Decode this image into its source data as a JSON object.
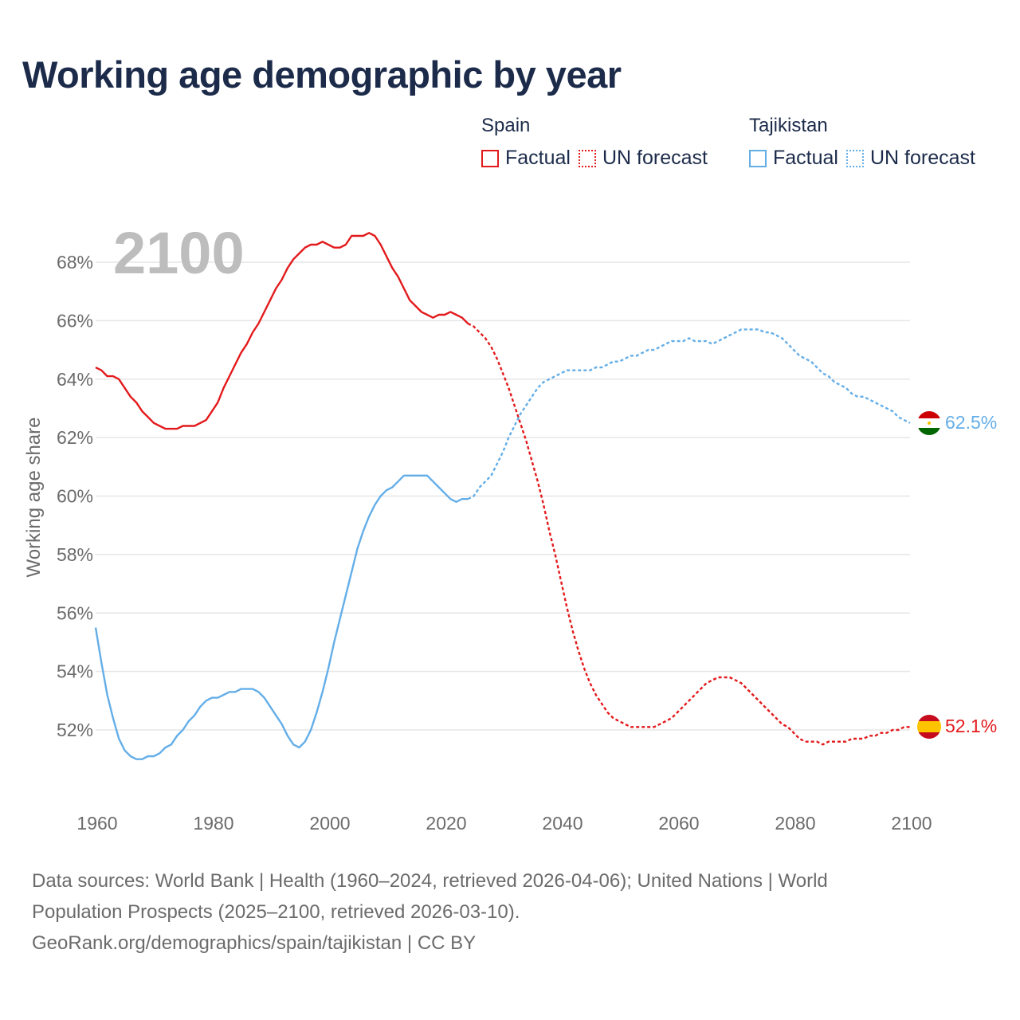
{
  "title": "Working age demographic by year",
  "legend": {
    "groups": [
      {
        "country": "Spain",
        "color": "#e31a1c",
        "items": [
          {
            "label": "Factual",
            "style": "solid"
          },
          {
            "label": "UN forecast",
            "style": "dotted"
          }
        ]
      },
      {
        "country": "Tajikistan",
        "color": "#64aee8",
        "items": [
          {
            "label": "Factual",
            "style": "solid"
          },
          {
            "label": "UN forecast",
            "style": "dotted"
          }
        ]
      }
    ]
  },
  "year_watermark": "2100",
  "end_labels": {
    "spain": "52.1%",
    "tajikistan": "62.5%"
  },
  "footer": {
    "line1": "Data sources: World Bank | Health (1960–2024, retrieved 2026-04-06); United Nations | World",
    "line2": "Population Prospects (2025–2100, retrieved 2026-03-10).",
    "line3": "GeoRank.org/demographics/spain/tajikistan | CC BY"
  },
  "chart_data": {
    "type": "line",
    "title": "Working age demographic by year",
    "xlabel": "",
    "ylabel": "Working age share",
    "xlim": [
      1960,
      2100
    ],
    "ylim": [
      50,
      69.5
    ],
    "yticks": [
      52,
      54,
      56,
      58,
      60,
      62,
      64,
      66,
      68
    ],
    "ytick_labels": [
      "52%",
      "54%",
      "56%",
      "58%",
      "60%",
      "62%",
      "64%",
      "66%",
      "68%"
    ],
    "xticks": [
      1960,
      1980,
      2000,
      2020,
      2040,
      2060,
      2080,
      2100
    ],
    "xtick_labels": [
      "1960",
      "1980",
      "2000",
      "2020",
      "2040",
      "2060",
      "2080",
      "2100"
    ],
    "grid": true,
    "series": [
      {
        "name": "Spain",
        "segment": "Factual",
        "color": "#e31a1c",
        "style": "solid",
        "points": [
          [
            1960,
            64.4
          ],
          [
            1961,
            64.3
          ],
          [
            1962,
            64.1
          ],
          [
            1963,
            64.1
          ],
          [
            1964,
            64.0
          ],
          [
            1965,
            63.7
          ],
          [
            1966,
            63.4
          ],
          [
            1967,
            63.2
          ],
          [
            1968,
            62.9
          ],
          [
            1969,
            62.7
          ],
          [
            1970,
            62.5
          ],
          [
            1971,
            62.4
          ],
          [
            1972,
            62.3
          ],
          [
            1973,
            62.3
          ],
          [
            1974,
            62.3
          ],
          [
            1975,
            62.4
          ],
          [
            1976,
            62.4
          ],
          [
            1977,
            62.4
          ],
          [
            1978,
            62.5
          ],
          [
            1979,
            62.6
          ],
          [
            1980,
            62.9
          ],
          [
            1981,
            63.2
          ],
          [
            1982,
            63.7
          ],
          [
            1983,
            64.1
          ],
          [
            1984,
            64.5
          ],
          [
            1985,
            64.9
          ],
          [
            1986,
            65.2
          ],
          [
            1987,
            65.6
          ],
          [
            1988,
            65.9
          ],
          [
            1989,
            66.3
          ],
          [
            1990,
            66.7
          ],
          [
            1991,
            67.1
          ],
          [
            1992,
            67.4
          ],
          [
            1993,
            67.8
          ],
          [
            1994,
            68.1
          ],
          [
            1995,
            68.3
          ],
          [
            1996,
            68.5
          ],
          [
            1997,
            68.6
          ],
          [
            1998,
            68.6
          ],
          [
            1999,
            68.7
          ],
          [
            2000,
            68.6
          ],
          [
            2001,
            68.5
          ],
          [
            2002,
            68.5
          ],
          [
            2003,
            68.6
          ],
          [
            2004,
            68.9
          ],
          [
            2005,
            68.9
          ],
          [
            2006,
            68.9
          ],
          [
            2007,
            69.0
          ],
          [
            2008,
            68.9
          ],
          [
            2009,
            68.6
          ],
          [
            2010,
            68.2
          ],
          [
            2011,
            67.8
          ],
          [
            2012,
            67.5
          ],
          [
            2013,
            67.1
          ],
          [
            2014,
            66.7
          ],
          [
            2015,
            66.5
          ],
          [
            2016,
            66.3
          ],
          [
            2017,
            66.2
          ],
          [
            2018,
            66.1
          ],
          [
            2019,
            66.2
          ],
          [
            2020,
            66.2
          ],
          [
            2021,
            66.3
          ],
          [
            2022,
            66.2
          ],
          [
            2023,
            66.1
          ],
          [
            2024,
            65.9
          ]
        ]
      },
      {
        "name": "Spain",
        "segment": "UN forecast",
        "color": "#e31a1c",
        "style": "dotted",
        "points": [
          [
            2024,
            65.9
          ],
          [
            2025,
            65.8
          ],
          [
            2026,
            65.6
          ],
          [
            2027,
            65.4
          ],
          [
            2028,
            65.1
          ],
          [
            2029,
            64.7
          ],
          [
            2030,
            64.2
          ],
          [
            2031,
            63.7
          ],
          [
            2032,
            63.1
          ],
          [
            2033,
            62.5
          ],
          [
            2034,
            61.9
          ],
          [
            2035,
            61.2
          ],
          [
            2036,
            60.5
          ],
          [
            2037,
            59.7
          ],
          [
            2038,
            58.8
          ],
          [
            2039,
            58.0
          ],
          [
            2040,
            57.1
          ],
          [
            2041,
            56.2
          ],
          [
            2042,
            55.4
          ],
          [
            2043,
            54.7
          ],
          [
            2044,
            54.1
          ],
          [
            2045,
            53.6
          ],
          [
            2046,
            53.2
          ],
          [
            2047,
            52.9
          ],
          [
            2048,
            52.6
          ],
          [
            2049,
            52.4
          ],
          [
            2050,
            52.3
          ],
          [
            2051,
            52.2
          ],
          [
            2052,
            52.1
          ],
          [
            2053,
            52.1
          ],
          [
            2054,
            52.1
          ],
          [
            2055,
            52.1
          ],
          [
            2056,
            52.1
          ],
          [
            2057,
            52.2
          ],
          [
            2058,
            52.3
          ],
          [
            2059,
            52.4
          ],
          [
            2060,
            52.6
          ],
          [
            2061,
            52.8
          ],
          [
            2062,
            53.0
          ],
          [
            2063,
            53.2
          ],
          [
            2064,
            53.4
          ],
          [
            2065,
            53.6
          ],
          [
            2066,
            53.7
          ],
          [
            2067,
            53.8
          ],
          [
            2068,
            53.8
          ],
          [
            2069,
            53.8
          ],
          [
            2070,
            53.7
          ],
          [
            2071,
            53.6
          ],
          [
            2072,
            53.4
          ],
          [
            2073,
            53.2
          ],
          [
            2074,
            53.0
          ],
          [
            2075,
            52.8
          ],
          [
            2076,
            52.6
          ],
          [
            2077,
            52.4
          ],
          [
            2078,
            52.2
          ],
          [
            2079,
            52.1
          ],
          [
            2080,
            51.9
          ],
          [
            2081,
            51.7
          ],
          [
            2082,
            51.6
          ],
          [
            2083,
            51.6
          ],
          [
            2084,
            51.6
          ],
          [
            2085,
            51.5
          ],
          [
            2086,
            51.6
          ],
          [
            2087,
            51.6
          ],
          [
            2088,
            51.6
          ],
          [
            2089,
            51.6
          ],
          [
            2090,
            51.7
          ],
          [
            2091,
            51.7
          ],
          [
            2092,
            51.7
          ],
          [
            2093,
            51.8
          ],
          [
            2094,
            51.8
          ],
          [
            2095,
            51.9
          ],
          [
            2096,
            51.9
          ],
          [
            2097,
            52.0
          ],
          [
            2098,
            52.0
          ],
          [
            2099,
            52.1
          ],
          [
            2100,
            52.1
          ]
        ]
      },
      {
        "name": "Tajikistan",
        "segment": "Factual",
        "color": "#64aee8",
        "style": "solid",
        "points": [
          [
            1960,
            55.5
          ],
          [
            1961,
            54.3
          ],
          [
            1962,
            53.2
          ],
          [
            1963,
            52.4
          ],
          [
            1964,
            51.7
          ],
          [
            1965,
            51.3
          ],
          [
            1966,
            51.1
          ],
          [
            1967,
            51.0
          ],
          [
            1968,
            51.0
          ],
          [
            1969,
            51.1
          ],
          [
            1970,
            51.1
          ],
          [
            1971,
            51.2
          ],
          [
            1972,
            51.4
          ],
          [
            1973,
            51.5
          ],
          [
            1974,
            51.8
          ],
          [
            1975,
            52.0
          ],
          [
            1976,
            52.3
          ],
          [
            1977,
            52.5
          ],
          [
            1978,
            52.8
          ],
          [
            1979,
            53.0
          ],
          [
            1980,
            53.1
          ],
          [
            1981,
            53.1
          ],
          [
            1982,
            53.2
          ],
          [
            1983,
            53.3
          ],
          [
            1984,
            53.3
          ],
          [
            1985,
            53.4
          ],
          [
            1986,
            53.4
          ],
          [
            1987,
            53.4
          ],
          [
            1988,
            53.3
          ],
          [
            1989,
            53.1
          ],
          [
            1990,
            52.8
          ],
          [
            1991,
            52.5
          ],
          [
            1992,
            52.2
          ],
          [
            1993,
            51.8
          ],
          [
            1994,
            51.5
          ],
          [
            1995,
            51.4
          ],
          [
            1996,
            51.6
          ],
          [
            1997,
            52.0
          ],
          [
            1998,
            52.6
          ],
          [
            1999,
            53.3
          ],
          [
            2000,
            54.1
          ],
          [
            2001,
            55.0
          ],
          [
            2002,
            55.8
          ],
          [
            2003,
            56.6
          ],
          [
            2004,
            57.4
          ],
          [
            2005,
            58.2
          ],
          [
            2006,
            58.8
          ],
          [
            2007,
            59.3
          ],
          [
            2008,
            59.7
          ],
          [
            2009,
            60.0
          ],
          [
            2010,
            60.2
          ],
          [
            2011,
            60.3
          ],
          [
            2012,
            60.5
          ],
          [
            2013,
            60.7
          ],
          [
            2014,
            60.7
          ],
          [
            2015,
            60.7
          ],
          [
            2016,
            60.7
          ],
          [
            2017,
            60.7
          ],
          [
            2018,
            60.5
          ],
          [
            2019,
            60.3
          ],
          [
            2020,
            60.1
          ],
          [
            2021,
            59.9
          ],
          [
            2022,
            59.8
          ],
          [
            2023,
            59.9
          ],
          [
            2024,
            59.9
          ]
        ]
      },
      {
        "name": "Tajikistan",
        "segment": "UN forecast",
        "color": "#64aee8",
        "style": "dotted",
        "points": [
          [
            2024,
            59.9
          ],
          [
            2025,
            60.0
          ],
          [
            2026,
            60.3
          ],
          [
            2027,
            60.5
          ],
          [
            2028,
            60.7
          ],
          [
            2029,
            61.1
          ],
          [
            2030,
            61.5
          ],
          [
            2031,
            62.0
          ],
          [
            2032,
            62.4
          ],
          [
            2033,
            62.8
          ],
          [
            2034,
            63.1
          ],
          [
            2035,
            63.4
          ],
          [
            2036,
            63.7
          ],
          [
            2037,
            63.9
          ],
          [
            2038,
            64.0
          ],
          [
            2039,
            64.1
          ],
          [
            2040,
            64.2
          ],
          [
            2041,
            64.3
          ],
          [
            2042,
            64.3
          ],
          [
            2043,
            64.3
          ],
          [
            2044,
            64.3
          ],
          [
            2045,
            64.3
          ],
          [
            2046,
            64.4
          ],
          [
            2047,
            64.4
          ],
          [
            2048,
            64.5
          ],
          [
            2049,
            64.6
          ],
          [
            2050,
            64.6
          ],
          [
            2051,
            64.7
          ],
          [
            2052,
            64.8
          ],
          [
            2053,
            64.8
          ],
          [
            2054,
            64.9
          ],
          [
            2055,
            65.0
          ],
          [
            2056,
            65.0
          ],
          [
            2057,
            65.1
          ],
          [
            2058,
            65.2
          ],
          [
            2059,
            65.3
          ],
          [
            2060,
            65.3
          ],
          [
            2061,
            65.3
          ],
          [
            2062,
            65.4
          ],
          [
            2063,
            65.3
          ],
          [
            2064,
            65.3
          ],
          [
            2065,
            65.3
          ],
          [
            2066,
            65.2
          ],
          [
            2067,
            65.3
          ],
          [
            2068,
            65.4
          ],
          [
            2069,
            65.5
          ],
          [
            2070,
            65.6
          ],
          [
            2071,
            65.7
          ],
          [
            2072,
            65.7
          ],
          [
            2073,
            65.7
          ],
          [
            2074,
            65.7
          ],
          [
            2075,
            65.6
          ],
          [
            2076,
            65.6
          ],
          [
            2077,
            65.5
          ],
          [
            2078,
            65.4
          ],
          [
            2079,
            65.2
          ],
          [
            2080,
            65.0
          ],
          [
            2081,
            64.8
          ],
          [
            2082,
            64.7
          ],
          [
            2083,
            64.6
          ],
          [
            2084,
            64.4
          ],
          [
            2085,
            64.2
          ],
          [
            2086,
            64.1
          ],
          [
            2087,
            63.9
          ],
          [
            2088,
            63.8
          ],
          [
            2089,
            63.7
          ],
          [
            2090,
            63.5
          ],
          [
            2091,
            63.4
          ],
          [
            2092,
            63.4
          ],
          [
            2093,
            63.3
          ],
          [
            2094,
            63.2
          ],
          [
            2095,
            63.1
          ],
          [
            2096,
            63.0
          ],
          [
            2097,
            62.9
          ],
          [
            2098,
            62.7
          ],
          [
            2099,
            62.6
          ],
          [
            2100,
            62.5
          ]
        ]
      }
    ]
  }
}
